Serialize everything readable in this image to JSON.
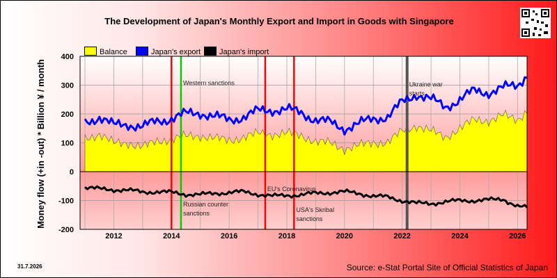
{
  "title": "The Development of Japan's Monthly Export and Import in Goods with Singapore",
  "date_label": "31.7.2026",
  "source": "Source: e-Stat Portal Site of Official Statistics of Japan",
  "qr_icon": "qr-code-icon",
  "colors": {
    "balance": "#ffff00",
    "export": "#0000ff",
    "import": "#000000",
    "red_marker": "#ff0000",
    "green_marker": "#00cc00",
    "gray_marker": "#555555"
  },
  "chart_data": {
    "type": "area",
    "title": "The Development of Japan's Monthly Export and Import in Goods with Singapore",
    "ylabel": "Money flow (+in -out) * Billion ¥ / month",
    "xlabel": "",
    "ylim": [
      -200,
      400
    ],
    "xlim": [
      2010.83,
      2026.33
    ],
    "y_ticks": [
      400,
      300,
      200,
      100,
      0,
      -100,
      -200
    ],
    "x_ticks": [
      2012,
      2014,
      2016,
      2018,
      2020,
      2022,
      2024,
      2026
    ],
    "grid": true,
    "legend_position": "top-left",
    "series": [
      {
        "name": "Balance",
        "key": "balance",
        "style": "area"
      },
      {
        "name": "Japan's export",
        "key": "export",
        "style": "line"
      },
      {
        "name": "Japan's import",
        "key": "import",
        "style": "line"
      }
    ],
    "annual_points": [
      {
        "year": 2011.0,
        "export": 170,
        "import": -55,
        "balance": 115
      },
      {
        "year": 2011.5,
        "export": 190,
        "import": -60,
        "balance": 130
      },
      {
        "year": 2012.0,
        "export": 160,
        "import": -62,
        "balance": 98
      },
      {
        "year": 2012.5,
        "export": 165,
        "import": -65,
        "balance": 100
      },
      {
        "year": 2013.0,
        "export": 155,
        "import": -70,
        "balance": 85
      },
      {
        "year": 2013.5,
        "export": 175,
        "import": -70,
        "balance": 105
      },
      {
        "year": 2014.0,
        "export": 185,
        "import": -72,
        "balance": 113
      },
      {
        "year": 2014.5,
        "export": 200,
        "import": -78,
        "balance": 122
      },
      {
        "year": 2015.0,
        "export": 205,
        "import": -80,
        "balance": 125
      },
      {
        "year": 2015.5,
        "export": 190,
        "import": -75,
        "balance": 115
      },
      {
        "year": 2016.0,
        "export": 180,
        "import": -72,
        "balance": 108
      },
      {
        "year": 2016.5,
        "export": 190,
        "import": -70,
        "balance": 120
      },
      {
        "year": 2017.0,
        "export": 210,
        "import": -78,
        "balance": 132
      },
      {
        "year": 2017.5,
        "export": 215,
        "import": -85,
        "balance": 130
      },
      {
        "year": 2018.0,
        "export": 215,
        "import": -82,
        "balance": 133
      },
      {
        "year": 2018.5,
        "export": 205,
        "import": -80,
        "balance": 125
      },
      {
        "year": 2019.0,
        "export": 180,
        "import": -75,
        "balance": 105
      },
      {
        "year": 2019.5,
        "export": 170,
        "import": -72,
        "balance": 98
      },
      {
        "year": 2020.0,
        "export": 150,
        "import": -70,
        "balance": 80
      },
      {
        "year": 2020.5,
        "export": 165,
        "import": -75,
        "balance": 90
      },
      {
        "year": 2021.0,
        "export": 185,
        "import": -85,
        "balance": 100
      },
      {
        "year": 2021.5,
        "export": 190,
        "import": -88,
        "balance": 102
      },
      {
        "year": 2022.0,
        "export": 240,
        "import": -100,
        "balance": 140
      },
      {
        "year": 2022.5,
        "export": 270,
        "import": -110,
        "balance": 160
      },
      {
        "year": 2023.0,
        "export": 250,
        "import": -110,
        "balance": 140
      },
      {
        "year": 2023.5,
        "export": 225,
        "import": -105,
        "balance": 120
      },
      {
        "year": 2024.0,
        "export": 250,
        "import": -100,
        "balance": 150
      },
      {
        "year": 2024.5,
        "export": 280,
        "import": -100,
        "balance": 180
      },
      {
        "year": 2025.0,
        "export": 275,
        "import": -98,
        "balance": 177
      },
      {
        "year": 2025.5,
        "export": 290,
        "import": -95,
        "balance": 195
      },
      {
        "year": 2026.0,
        "export": 300,
        "import": -120,
        "balance": 180
      },
      {
        "year": 2026.3,
        "export": 335,
        "import": -125,
        "balance": 210
      }
    ],
    "events": [
      {
        "x": 2014.0,
        "color": "red",
        "label": "",
        "label_y": 0
      },
      {
        "x": 2014.33,
        "color": "green",
        "label": "Western sanctions",
        "label_y": 300
      },
      {
        "x": 2014.33,
        "color": "green",
        "label": "Russian counter sanctions",
        "label_y": -120
      },
      {
        "x": 2017.25,
        "color": "red",
        "label": "EU's Coronavirus",
        "label_y": -68
      },
      {
        "x": 2018.25,
        "color": "red",
        "label": "USA's Skribal sanctions",
        "label_y": -140
      },
      {
        "x": 2022.17,
        "color": "gray",
        "label": "Ukraine war starts",
        "label_y": 295
      }
    ]
  }
}
